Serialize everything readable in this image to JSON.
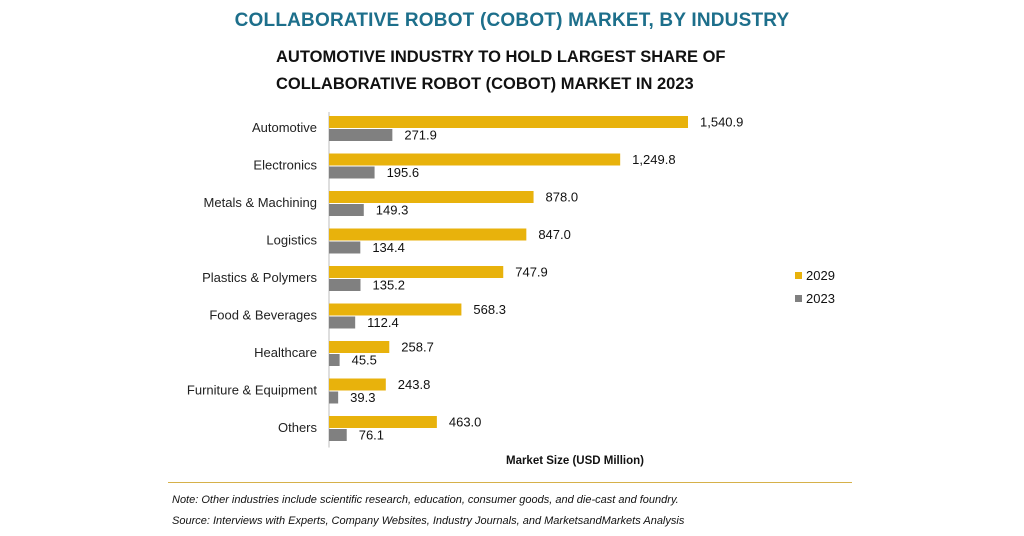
{
  "header": {
    "title": "COLLABORATIVE ROBOT (COBOT) MARKET, BY INDUSTRY",
    "subtitle": "AUTOMOTIVE INDUSTRY TO HOLD LARGEST SHARE OF COLLABORATIVE ROBOT (COBOT) MARKET IN 2023"
  },
  "chart_data": {
    "type": "bar",
    "orientation": "horizontal",
    "title": "AUTOMOTIVE INDUSTRY TO HOLD LARGEST SHARE OF COLLABORATIVE ROBOT (COBOT) MARKET IN 2023",
    "xlabel": "Market Size (USD Million)",
    "ylabel": "",
    "categories": [
      "Automotive",
      "Electronics",
      "Metals & Machining",
      "Logistics",
      "Plastics & Polymers",
      "Food & Beverages",
      "Healthcare",
      "Furniture & Equipment",
      "Others"
    ],
    "series": [
      {
        "name": "2029",
        "color": "#e8b20c",
        "values": [
          1540.9,
          1249.8,
          878.0,
          847.0,
          747.9,
          568.3,
          258.7,
          243.8,
          463.0
        ],
        "labels": [
          "1,540.9",
          "1,249.8",
          "878.0",
          "847.0",
          "747.9",
          "568.3",
          "258.7",
          "243.8",
          "463.0"
        ]
      },
      {
        "name": "2023",
        "color": "#808080",
        "values": [
          271.9,
          195.6,
          149.3,
          134.4,
          135.2,
          112.4,
          45.5,
          39.3,
          76.1
        ],
        "labels": [
          "271.9",
          "195.6",
          "149.3",
          "134.4",
          "135.2",
          "112.4",
          "45.5",
          "39.3",
          "76.1"
        ]
      }
    ],
    "xlim": [
      0,
      1540.9
    ],
    "grid": false,
    "legend_position": "right"
  },
  "footer": {
    "note": "Note: Other industries include scientific research, education, consumer goods, and die-cast and foundry.",
    "source": "Source: Interviews with Experts, Company Websites, Industry Journals, and MarketsandMarkets Analysis"
  }
}
